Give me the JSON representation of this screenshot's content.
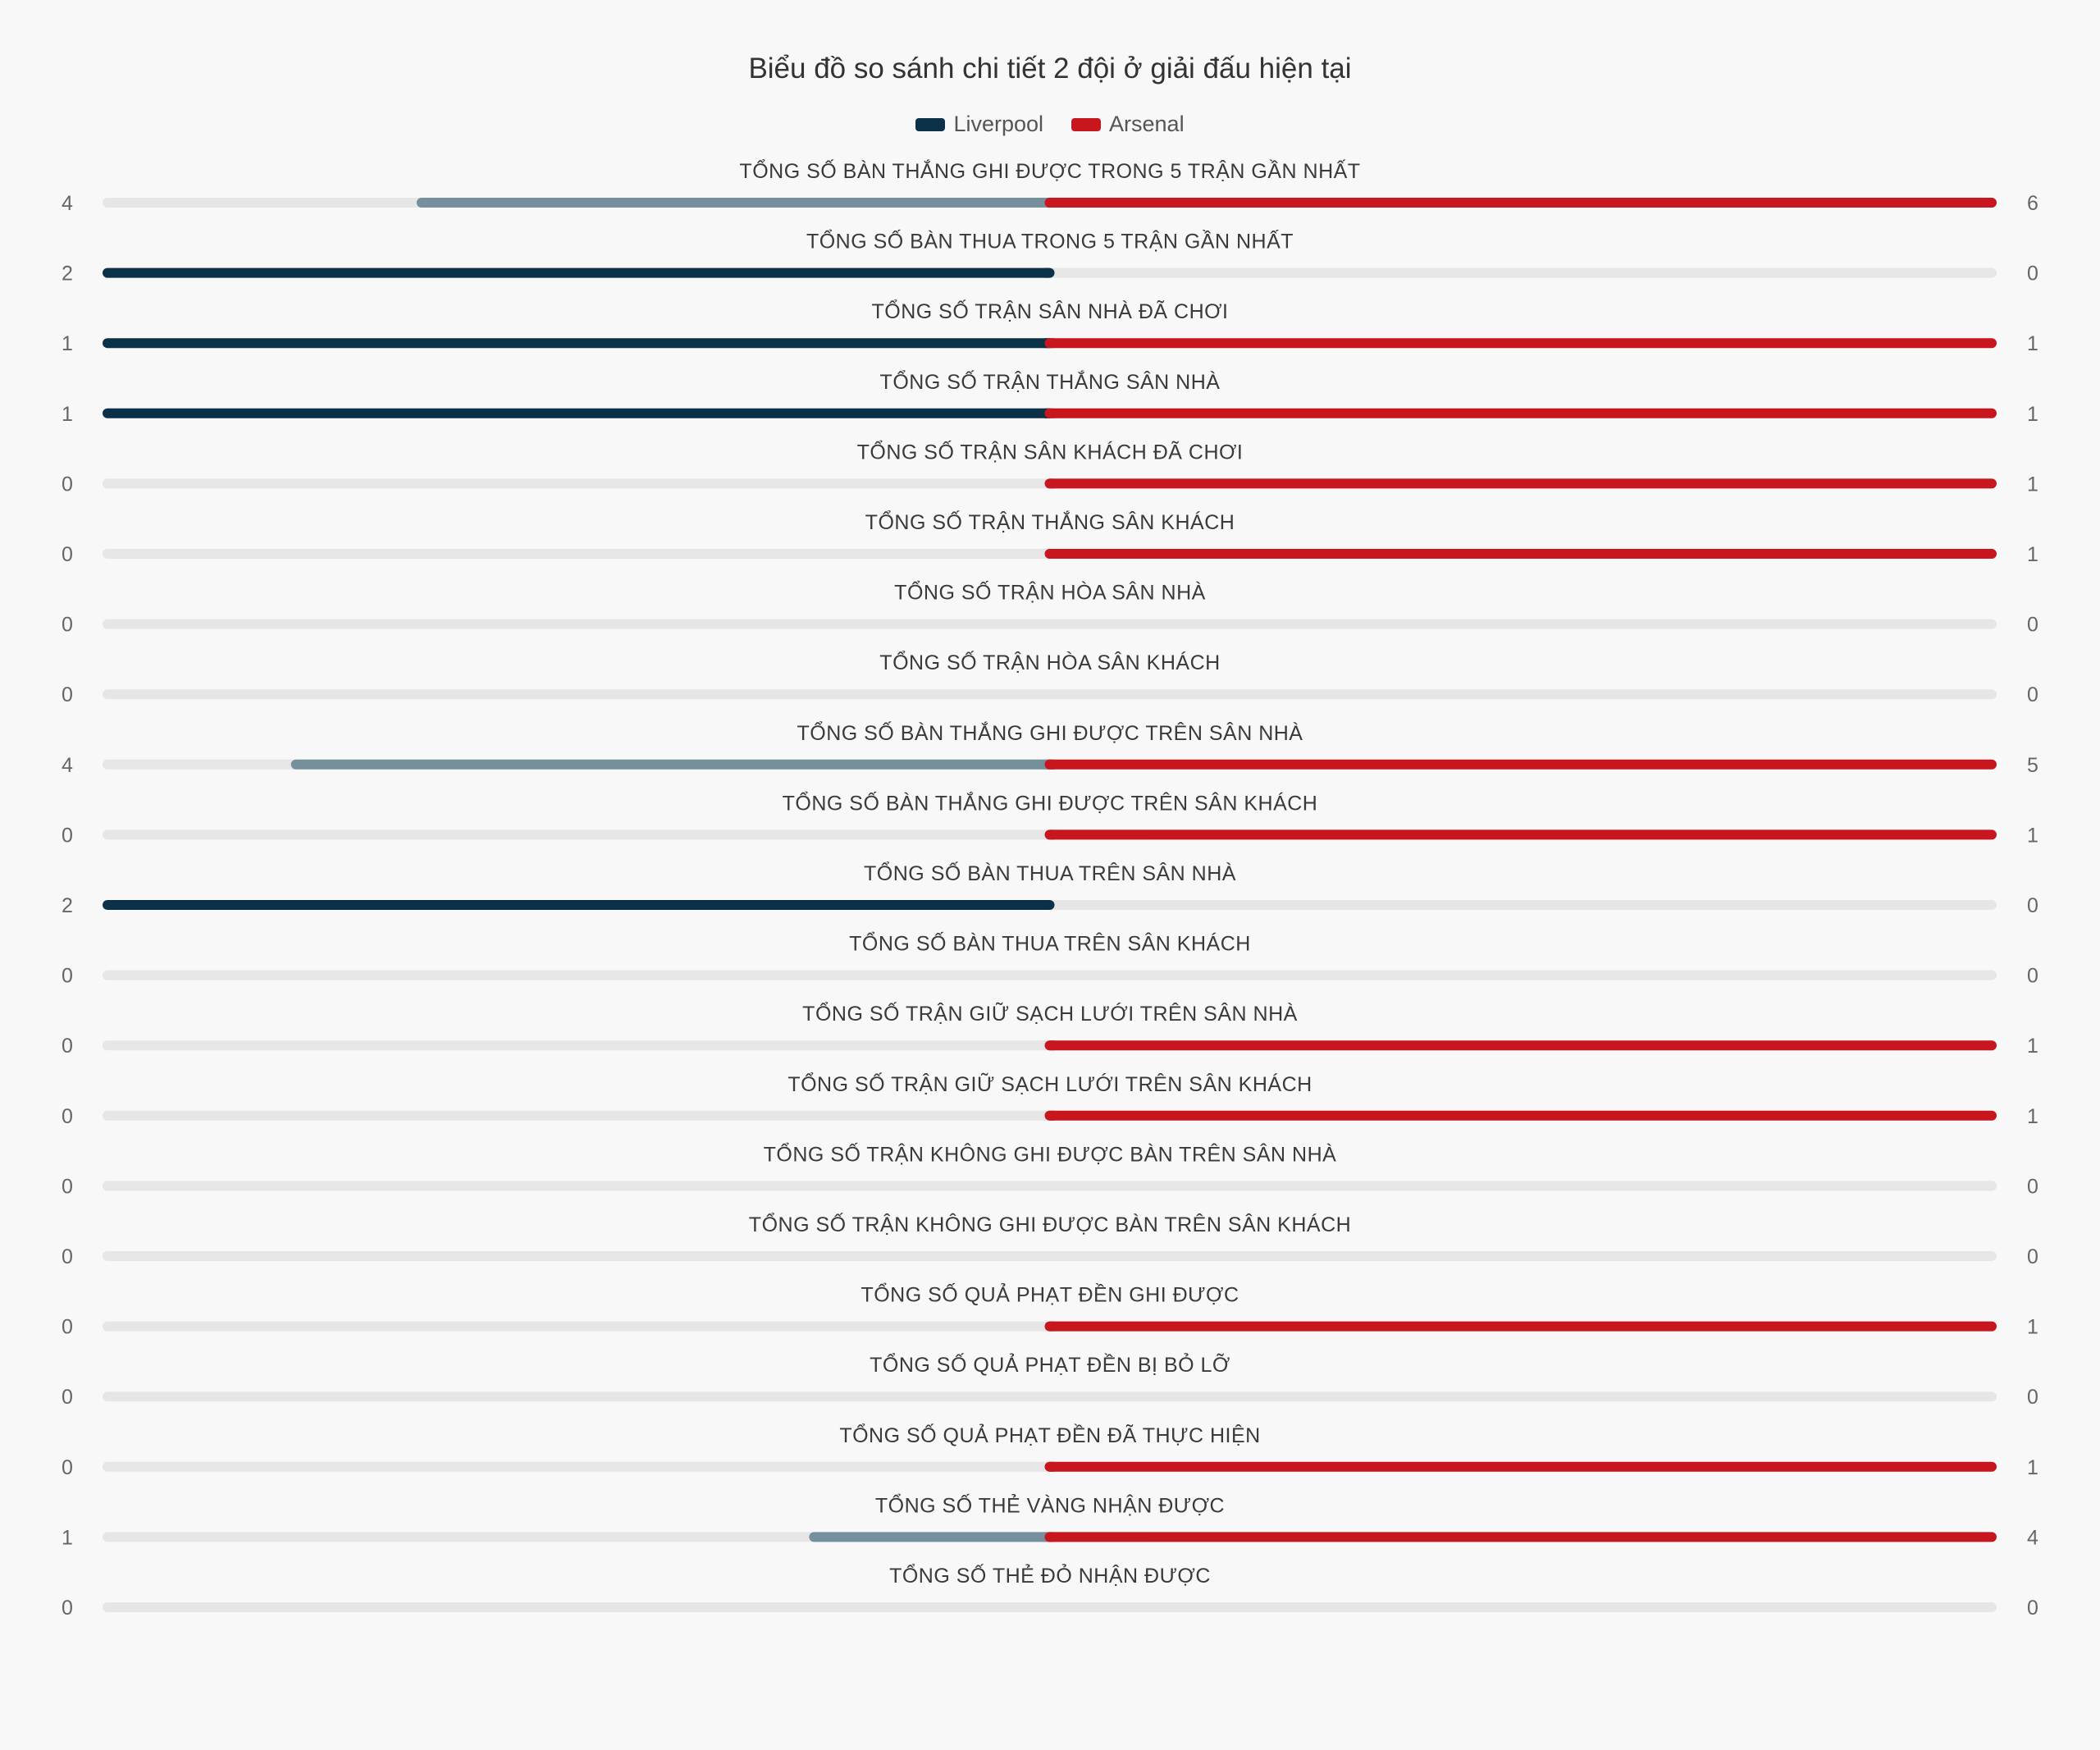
{
  "chart_data": {
    "type": "bar",
    "title": "Biểu đồ so sánh chi tiết 2 đội ở giải đấu hiện tại",
    "legend_position": "top-center",
    "series": [
      {
        "name": "Liverpool",
        "color": "#0b3149",
        "faded_color": "#758f9c"
      },
      {
        "name": "Arsenal",
        "color": "#c8161f"
      }
    ],
    "track_color": "#e6e6e6",
    "categories": [
      {
        "label": "TỔNG SỐ BÀN THẮNG GHI ĐƯỢC TRONG 5 TRẬN GẦN NHẤT",
        "liverpool": 4,
        "arsenal": 6
      },
      {
        "label": "TỔNG SỐ BÀN THUA TRONG 5 TRẬN GẦN NHẤT",
        "liverpool": 2,
        "arsenal": 0
      },
      {
        "label": "TỔNG SỐ TRẬN SÂN NHÀ ĐÃ CHƠI",
        "liverpool": 1,
        "arsenal": 1
      },
      {
        "label": "TỔNG SỐ TRẬN THẮNG SÂN NHÀ",
        "liverpool": 1,
        "arsenal": 1
      },
      {
        "label": "TỔNG SỐ TRẬN SÂN KHÁCH ĐÃ CHƠI",
        "liverpool": 0,
        "arsenal": 1
      },
      {
        "label": "TỔNG SỐ TRẬN THẮNG SÂN KHÁCH",
        "liverpool": 0,
        "arsenal": 1
      },
      {
        "label": "TỔNG SỐ TRẬN HÒA SÂN NHÀ",
        "liverpool": 0,
        "arsenal": 0
      },
      {
        "label": "TỔNG SỐ TRẬN HÒA SÂN KHÁCH",
        "liverpool": 0,
        "arsenal": 0
      },
      {
        "label": "TỔNG SỐ BÀN THẮNG GHI ĐƯỢC TRÊN SÂN NHÀ",
        "liverpool": 4,
        "arsenal": 5
      },
      {
        "label": "TỔNG SỐ BÀN THẮNG GHI ĐƯỢC TRÊN SÂN KHÁCH",
        "liverpool": 0,
        "arsenal": 1
      },
      {
        "label": "TỔNG SỐ BÀN THUA TRÊN SÂN NHÀ",
        "liverpool": 2,
        "arsenal": 0
      },
      {
        "label": "TỔNG SỐ BÀN THUA TRÊN SÂN KHÁCH",
        "liverpool": 0,
        "arsenal": 0
      },
      {
        "label": "TỔNG SỐ TRẬN GIỮ SẠCH LƯỚI TRÊN SÂN NHÀ",
        "liverpool": 0,
        "arsenal": 1
      },
      {
        "label": "TỔNG SỐ TRẬN GIỮ SẠCH LƯỚI TRÊN SÂN KHÁCH",
        "liverpool": 0,
        "arsenal": 1
      },
      {
        "label": "TỔNG SỐ TRẬN KHÔNG GHI ĐƯỢC BÀN TRÊN SÂN NHÀ",
        "liverpool": 0,
        "arsenal": 0
      },
      {
        "label": "TỔNG SỐ TRẬN KHÔNG GHI ĐƯỢC BÀN TRÊN SÂN KHÁCH",
        "liverpool": 0,
        "arsenal": 0
      },
      {
        "label": "TỔNG SỐ QUẢ PHẠT ĐỀN GHI ĐƯỢC",
        "liverpool": 0,
        "arsenal": 1
      },
      {
        "label": "TỔNG SỐ QUẢ PHẠT ĐỀN BỊ BỎ LỠ",
        "liverpool": 0,
        "arsenal": 0
      },
      {
        "label": "TỔNG SỐ QUẢ PHẠT ĐỀN ĐÃ THỰC HIỆN",
        "liverpool": 0,
        "arsenal": 1
      },
      {
        "label": "TỔNG SỐ THẺ VÀNG NHẬN ĐƯỢC",
        "liverpool": 1,
        "arsenal": 4
      },
      {
        "label": "TỔNG SỐ THẺ ĐỎ NHẬN ĐƯỢC",
        "liverpool": 0,
        "arsenal": 0
      }
    ]
  }
}
